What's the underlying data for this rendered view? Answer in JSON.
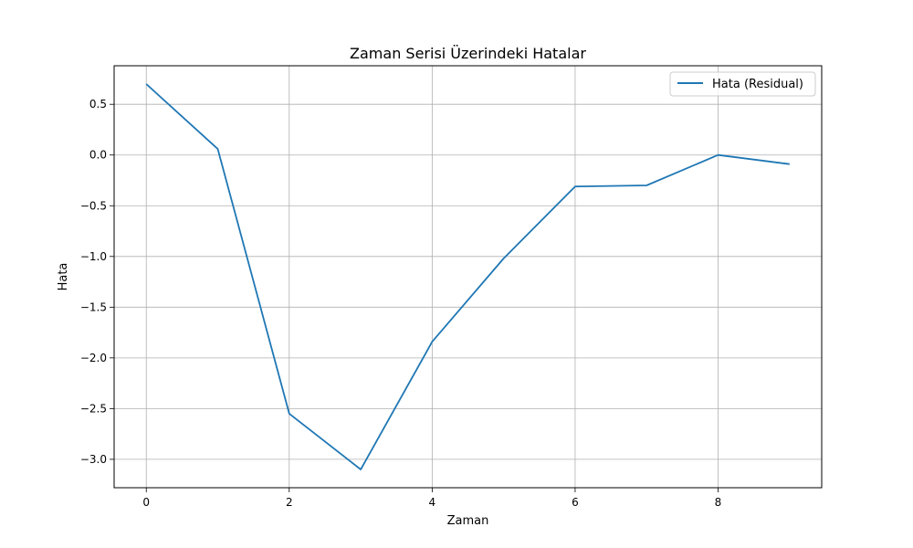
{
  "chart_data": {
    "type": "line",
    "title": "Zaman Serisi Üzerindeki Hatalar",
    "xlabel": "Zaman",
    "ylabel": "Hata",
    "xlim": [
      -0.45,
      9.45
    ],
    "ylim": [
      -3.28,
      0.88
    ],
    "x_ticks": [
      0,
      2,
      4,
      6,
      8
    ],
    "y_ticks": [
      0.5,
      0.0,
      -0.5,
      -1.0,
      -1.5,
      -2.0,
      -2.5,
      -3.0
    ],
    "x_tick_labels": [
      "0",
      "2",
      "4",
      "6",
      "8"
    ],
    "y_tick_labels": [
      "0.5",
      "0.0",
      "−0.5",
      "−1.0",
      "−1.5",
      "−2.0",
      "−2.5",
      "−3.0"
    ],
    "grid": true,
    "legend_position": "upper right",
    "series": [
      {
        "name": "Hata (Residual)",
        "color": "#1f77b4",
        "x": [
          0,
          1,
          2,
          3,
          4,
          5,
          6,
          7,
          8,
          9
        ],
        "values": [
          0.7,
          0.06,
          -2.55,
          -3.1,
          -1.84,
          -1.02,
          -0.31,
          -0.3,
          0.0,
          -0.09
        ]
      }
    ]
  }
}
